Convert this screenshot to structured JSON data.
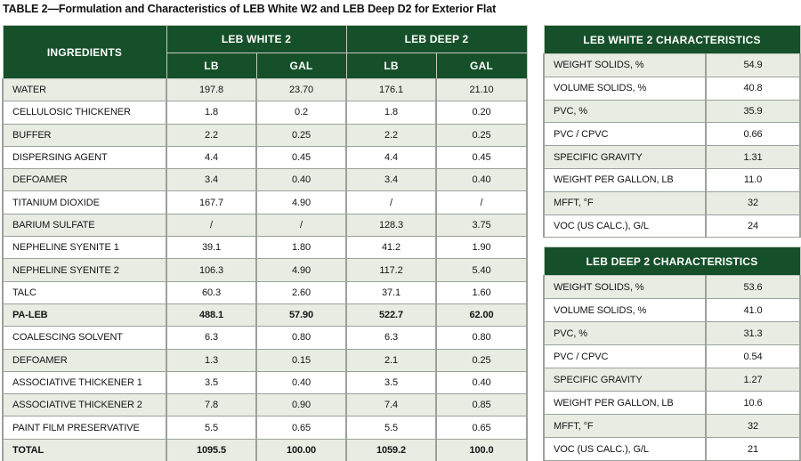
{
  "title": "TABLE 2—Formulation and Characteristics of LEB White W2 and LEB Deep D2 for Exterior Flat",
  "colors": {
    "header_green": "#16502a",
    "row_shaded": "#e8ece3",
    "row_white": "#ffffff",
    "border_gray": "#9aa29a",
    "text": "#151515"
  },
  "formulation_table": {
    "ingredients_header": "INGREDIENTS",
    "group_headers": [
      "LEB WHITE 2",
      "LEB DEEP 2"
    ],
    "subheaders": [
      "LB",
      "GAL",
      "LB",
      "GAL"
    ],
    "rows": [
      {
        "ingredient": "WATER",
        "values": [
          "197.8",
          "23.70",
          "176.1",
          "21.10"
        ],
        "bold": false
      },
      {
        "ingredient": "CELLULOSIC THICKENER",
        "values": [
          "1.8",
          "0.2",
          "1.8",
          "0.20"
        ],
        "bold": false
      },
      {
        "ingredient": "BUFFER",
        "values": [
          "2.2",
          "0.25",
          "2.2",
          "0.25"
        ],
        "bold": false
      },
      {
        "ingredient": "DISPERSING AGENT",
        "values": [
          "4.4",
          "0.45",
          "4.4",
          "0.45"
        ],
        "bold": false
      },
      {
        "ingredient": "DEFOAMER",
        "values": [
          "3.4",
          "0.40",
          "3.4",
          "0.40"
        ],
        "bold": false
      },
      {
        "ingredient": "TITANIUM DIOXIDE",
        "values": [
          "167.7",
          "4.90",
          "/",
          "/"
        ],
        "bold": false
      },
      {
        "ingredient": "BARIUM SULFATE",
        "values": [
          "/",
          "/",
          "128.3",
          "3.75"
        ],
        "bold": false
      },
      {
        "ingredient": "NEPHELINE SYENITE 1",
        "values": [
          "39.1",
          "1.80",
          "41.2",
          "1.90"
        ],
        "bold": false
      },
      {
        "ingredient": "NEPHELINE SYENITE 2",
        "values": [
          "106.3",
          "4.90",
          "117.2",
          "5.40"
        ],
        "bold": false
      },
      {
        "ingredient": "TALC",
        "values": [
          "60.3",
          "2.60",
          "37.1",
          "1.60"
        ],
        "bold": false
      },
      {
        "ingredient": "PA-LEB",
        "values": [
          "488.1",
          "57.90",
          "522.7",
          "62.00"
        ],
        "bold": true
      },
      {
        "ingredient": "COALESCING SOLVENT",
        "values": [
          "6.3",
          "0.80",
          "6.3",
          "0.80"
        ],
        "bold": false
      },
      {
        "ingredient": "DEFOAMER",
        "values": [
          "1.3",
          "0.15",
          "2.1",
          "0.25"
        ],
        "bold": false
      },
      {
        "ingredient": "ASSOCIATIVE THICKENER 1",
        "values": [
          "3.5",
          "0.40",
          "3.5",
          "0.40"
        ],
        "bold": false
      },
      {
        "ingredient": "ASSOCIATIVE THICKENER 2",
        "values": [
          "7.8",
          "0.90",
          "7.4",
          "0.85"
        ],
        "bold": false
      },
      {
        "ingredient": "PAINT FILM PRESERVATIVE",
        "values": [
          "5.5",
          "0.65",
          "5.5",
          "0.65"
        ],
        "bold": false
      },
      {
        "ingredient": "TOTAL",
        "values": [
          "1095.5",
          "100.00",
          "1059.2",
          "100.0"
        ],
        "bold": true
      }
    ]
  },
  "white_characteristics": {
    "title": "LEB WHITE 2 CHARACTERISTICS",
    "rows": [
      {
        "label": "WEIGHT SOLIDS, %",
        "value": "54.9"
      },
      {
        "label": "VOLUME SOLIDS, %",
        "value": "40.8"
      },
      {
        "label": "PVC, %",
        "value": "35.9"
      },
      {
        "label": "PVC / CPVC",
        "value": "0.66"
      },
      {
        "label": "SPECIFIC GRAVITY",
        "value": "1.31"
      },
      {
        "label": "WEIGHT PER GALLON, LB",
        "value": "11.0"
      },
      {
        "label": "MFFT, °F",
        "value": "32"
      },
      {
        "label": "VOC (US CALC.), G/L",
        "value": "24"
      }
    ]
  },
  "deep_characteristics": {
    "title": "LEB DEEP 2 CHARACTERISTICS",
    "rows": [
      {
        "label": "WEIGHT SOLIDS, %",
        "value": "53.6"
      },
      {
        "label": "VOLUME SOLIDS, %",
        "value": "41.0"
      },
      {
        "label": "PVC, %",
        "value": "31.3"
      },
      {
        "label": "PVC / CPVC",
        "value": "0.54"
      },
      {
        "label": "SPECIFIC GRAVITY",
        "value": "1.27"
      },
      {
        "label": "WEIGHT PER GALLON, LB",
        "value": "10.6"
      },
      {
        "label": "MFFT, °F",
        "value": "32"
      },
      {
        "label": "VOC (US CALC.), G/L",
        "value": "21"
      }
    ]
  }
}
